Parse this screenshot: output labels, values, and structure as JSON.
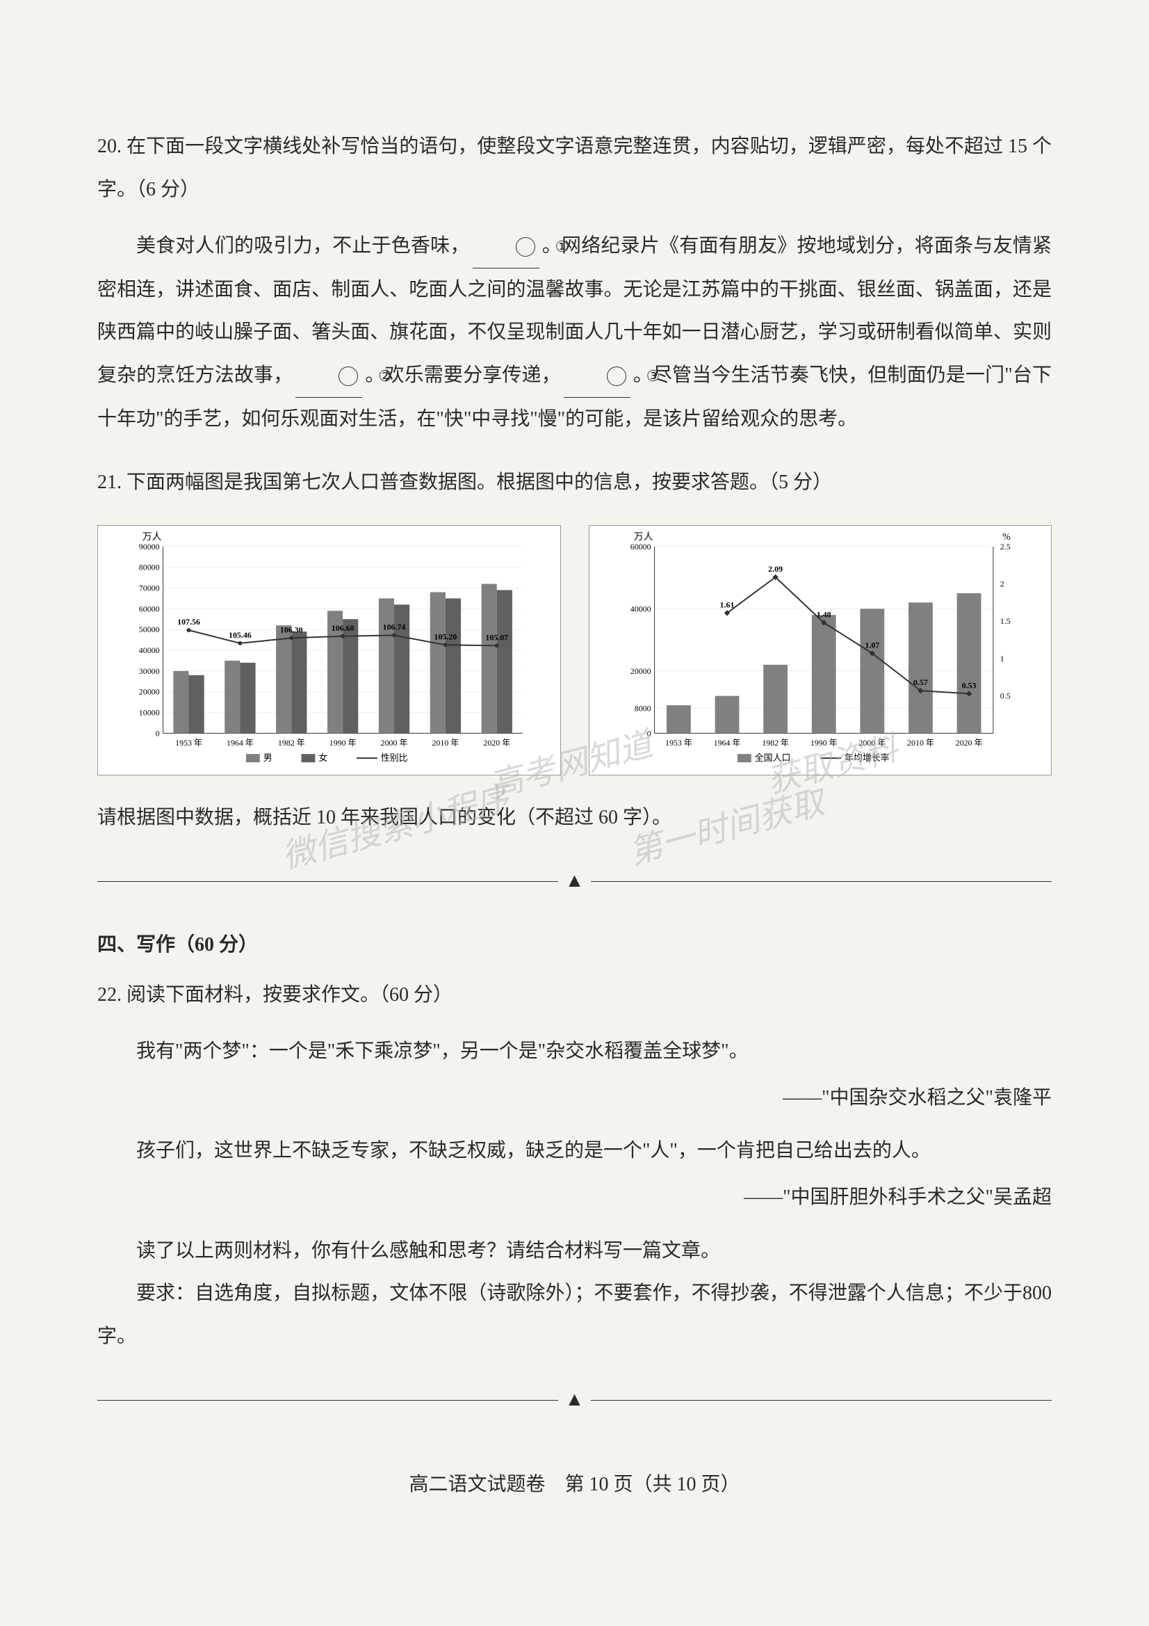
{
  "q20": {
    "number": "20.",
    "prompt": "在下面一段文字横线处补写恰当的语句，使整段文字语意完整连贯，内容贴切，逻辑严密，每处不超过 15 个字。（6 分）",
    "passage_p1": "美食对人们的吸引力，不止于色香味，",
    "passage_p2": "。网络纪录片《有面有朋友》按地域划分，将面条与友情紧密相连，讲述面食、面店、制面人、吃面人之间的温馨故事。无论是江苏篇中的干挑面、银丝面、锅盖面，还是陕西篇中的岐山臊子面、箸头面、旗花面，不仅呈现制面人几十年如一日潜心厨艺，学习或研制看似简单、实则复杂的烹饪方法故事，",
    "passage_p3": "。欢乐需要分享传递，",
    "passage_p4": "。尽管当今生活节奏飞快，但制面仍是一门\"台下十年功\"的手艺，如何乐观面对生活，在\"快\"中寻找\"慢\"的可能，是该片留给观众的思考。",
    "blank1": "①",
    "blank2": "②",
    "blank3": "③"
  },
  "q21": {
    "number": "21.",
    "prompt": "下面两幅图是我国第七次人口普查数据图。根据图中的信息，按要求答题。（5 分）",
    "instruction": "请根据图中数据，概括近 10 年来我国人口的变化（不超过 60 字）。"
  },
  "chart1": {
    "type": "bar-line",
    "y_label": "万人",
    "y_ticks": [
      0,
      10000,
      20000,
      30000,
      40000,
      50000,
      60000,
      70000,
      80000,
      90000
    ],
    "ylim": [
      0,
      90000
    ],
    "categories": [
      "1953 年",
      "1964 年",
      "1982 年",
      "1990 年",
      "2000 年",
      "2010 年",
      "2020 年"
    ],
    "male_values": [
      30000,
      35000,
      52000,
      59000,
      65000,
      68000,
      72000
    ],
    "female_values": [
      28000,
      34000,
      49000,
      55000,
      62000,
      65000,
      69000
    ],
    "ratio_values": [
      107.56,
      105.46,
      106.3,
      106.6,
      106.74,
      105.2,
      105.07
    ],
    "ratio_labels": [
      "107.56",
      "105.46",
      "106.30",
      "106.60",
      "106.74",
      "105.20",
      "105.07"
    ],
    "legend": [
      "男",
      "女",
      "性别比"
    ],
    "bar_male_color": "#808080",
    "bar_female_color": "#606060",
    "line_color": "#333333",
    "background_color": "#ffffff",
    "grid_color": "#e0e0e0",
    "font_size": 13
  },
  "chart2": {
    "type": "bar-line",
    "y_label_left": "万人",
    "y_label_right": "%",
    "y_ticks_left": [
      0,
      8000,
      20000,
      40000,
      60000
    ],
    "y_ticks_right": [
      0.5,
      1,
      1.5,
      2,
      2.5
    ],
    "ylim_left": [
      0,
      60000
    ],
    "ylim_right": [
      0,
      2.5
    ],
    "categories": [
      "1953 年",
      "1964 年",
      "1982 年",
      "1990 年",
      "2000 年",
      "2010 年",
      "2020 年"
    ],
    "pop_values": [
      9000,
      12000,
      22000,
      38000,
      40000,
      42000,
      45000
    ],
    "growth_values": [
      null,
      1.61,
      2.09,
      1.48,
      1.07,
      0.57,
      0.53
    ],
    "growth_labels": [
      "",
      "1.61",
      "2.09",
      "1.48",
      "1.07",
      "0.57",
      "0.53"
    ],
    "legend": [
      "全国人口",
      "年均增长率"
    ],
    "bar_color": "#808080",
    "line_color": "#333333",
    "background_color": "#ffffff",
    "grid_color": "#e0e0e0",
    "font_size": 13
  },
  "section4": {
    "heading": "四、写作（60 分）"
  },
  "q22": {
    "number": "22.",
    "prompt": "阅读下面材料，按要求作文。（60 分）",
    "line1": "我有\"两个梦\"：一个是\"禾下乘凉梦\"，另一个是\"杂交水稻覆盖全球梦\"。",
    "attr1": "——\"中国杂交水稻之父\"袁隆平",
    "line2": "孩子们，这世界上不缺乏专家，不缺乏权威，缺乏的是一个\"人\"，一个肯把自己给出去的人。",
    "attr2": "——\"中国肝胆外科手术之父\"吴孟超",
    "line3": "读了以上两则材料，你有什么感触和思考？请结合材料写一篇文章。",
    "line4": "要求：自选角度，自拟标题，文体不限（诗歌除外）；不要套作，不得抄袭，不得泄露个人信息；不少于800 字。"
  },
  "footer": {
    "text": "高二语文试题卷　第 10 页（共 10 页）"
  },
  "watermarks": {
    "wm1": "高考网知道",
    "wm2": "微信搜索小程序",
    "wm3": "获取资料",
    "wm4": "第一时间获取"
  }
}
